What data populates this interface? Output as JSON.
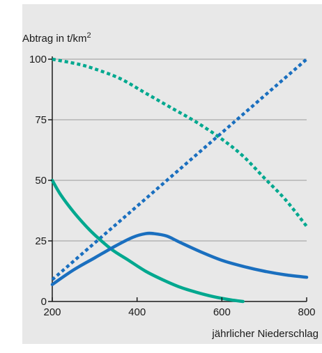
{
  "chart_data": {
    "type": "line",
    "ylabel": "Abtrag in t/km",
    "ylabel_superscript": "2",
    "xlabel": "jährlicher Niederschlag",
    "xlim": [
      200,
      800
    ],
    "ylim": [
      0,
      100
    ],
    "x_ticks": [
      200,
      400,
      600,
      800
    ],
    "y_ticks": [
      0,
      25,
      50,
      75,
      100
    ],
    "grid": "horizontal",
    "series": [
      {
        "color": "#00a88f",
        "style": "dotted",
        "points": [
          [
            200,
            100
          ],
          [
            260,
            98
          ],
          [
            300,
            96
          ],
          [
            360,
            92
          ],
          [
            420,
            86
          ],
          [
            480,
            80
          ],
          [
            540,
            74
          ],
          [
            600,
            67
          ],
          [
            650,
            60
          ],
          [
            700,
            51
          ],
          [
            750,
            42
          ],
          [
            800,
            31
          ]
        ]
      },
      {
        "color": "#1a6fbf",
        "style": "dotted",
        "points": [
          [
            200,
            9
          ],
          [
            800,
            100
          ]
        ]
      },
      {
        "color": "#00a88f",
        "style": "solid",
        "points": [
          [
            200,
            50
          ],
          [
            220,
            44
          ],
          [
            250,
            37
          ],
          [
            280,
            31
          ],
          [
            300,
            27.5
          ],
          [
            340,
            21.5
          ],
          [
            380,
            17
          ],
          [
            420,
            12.5
          ],
          [
            460,
            9
          ],
          [
            500,
            6
          ],
          [
            540,
            3.8
          ],
          [
            580,
            2
          ],
          [
            620,
            0.7
          ],
          [
            650,
            0
          ]
        ]
      },
      {
        "color": "#1a6fbf",
        "style": "solid",
        "points": [
          [
            200,
            7
          ],
          [
            250,
            13
          ],
          [
            300,
            18
          ],
          [
            350,
            23
          ],
          [
            390,
            26.5
          ],
          [
            420,
            28
          ],
          [
            440,
            28
          ],
          [
            470,
            27
          ],
          [
            500,
            24.5
          ],
          [
            550,
            20.5
          ],
          [
            600,
            17
          ],
          [
            650,
            14.5
          ],
          [
            700,
            12.5
          ],
          [
            750,
            11
          ],
          [
            800,
            10
          ]
        ]
      }
    ]
  }
}
